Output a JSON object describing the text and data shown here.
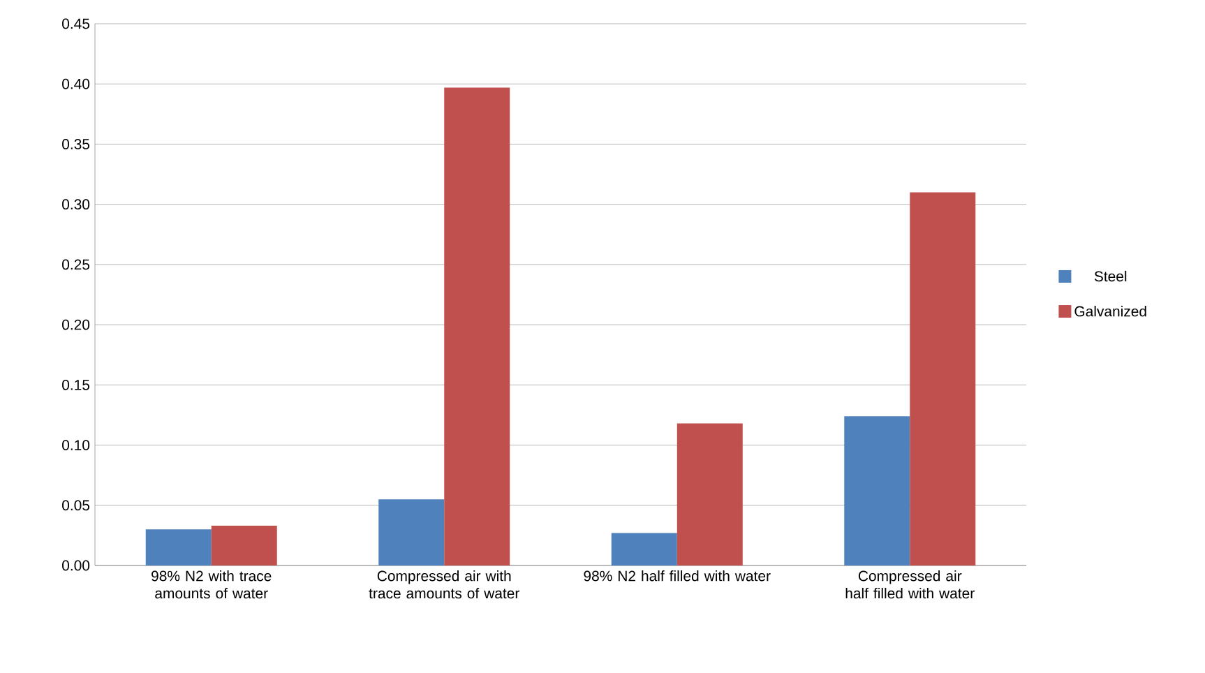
{
  "chart_data": {
    "type": "bar",
    "categories": [
      "98% N2 with trace amounts of water",
      "Compressed air with trace amounts of water",
      "98% N2 half filled with water",
      "Compressed air half filled with water"
    ],
    "series": [
      {
        "name": "Steel",
        "color": "#4f81bd",
        "values": [
          0.03,
          0.055,
          0.027,
          0.124
        ]
      },
      {
        "name": "Galvanized",
        "color": "#c0504d",
        "values": [
          0.033,
          0.397,
          0.118,
          0.31
        ]
      }
    ],
    "ylim": [
      0,
      0.45
    ],
    "yticks": [
      {
        "value": 0,
        "label": "0.00"
      },
      {
        "value": 0.05,
        "label": "0.05"
      },
      {
        "value": 0.1,
        "label": "0.10"
      },
      {
        "value": 0.15,
        "label": "0.15"
      },
      {
        "value": 0.2,
        "label": "0.20"
      },
      {
        "value": 0.25,
        "label": "0.25"
      },
      {
        "value": 0.3,
        "label": "0.30"
      },
      {
        "value": 0.35,
        "label": "0.35"
      },
      {
        "value": 0.4,
        "label": "0.40"
      },
      {
        "value": 0.45,
        "label": "0.45"
      }
    ],
    "grid": "y",
    "legend": "right"
  }
}
